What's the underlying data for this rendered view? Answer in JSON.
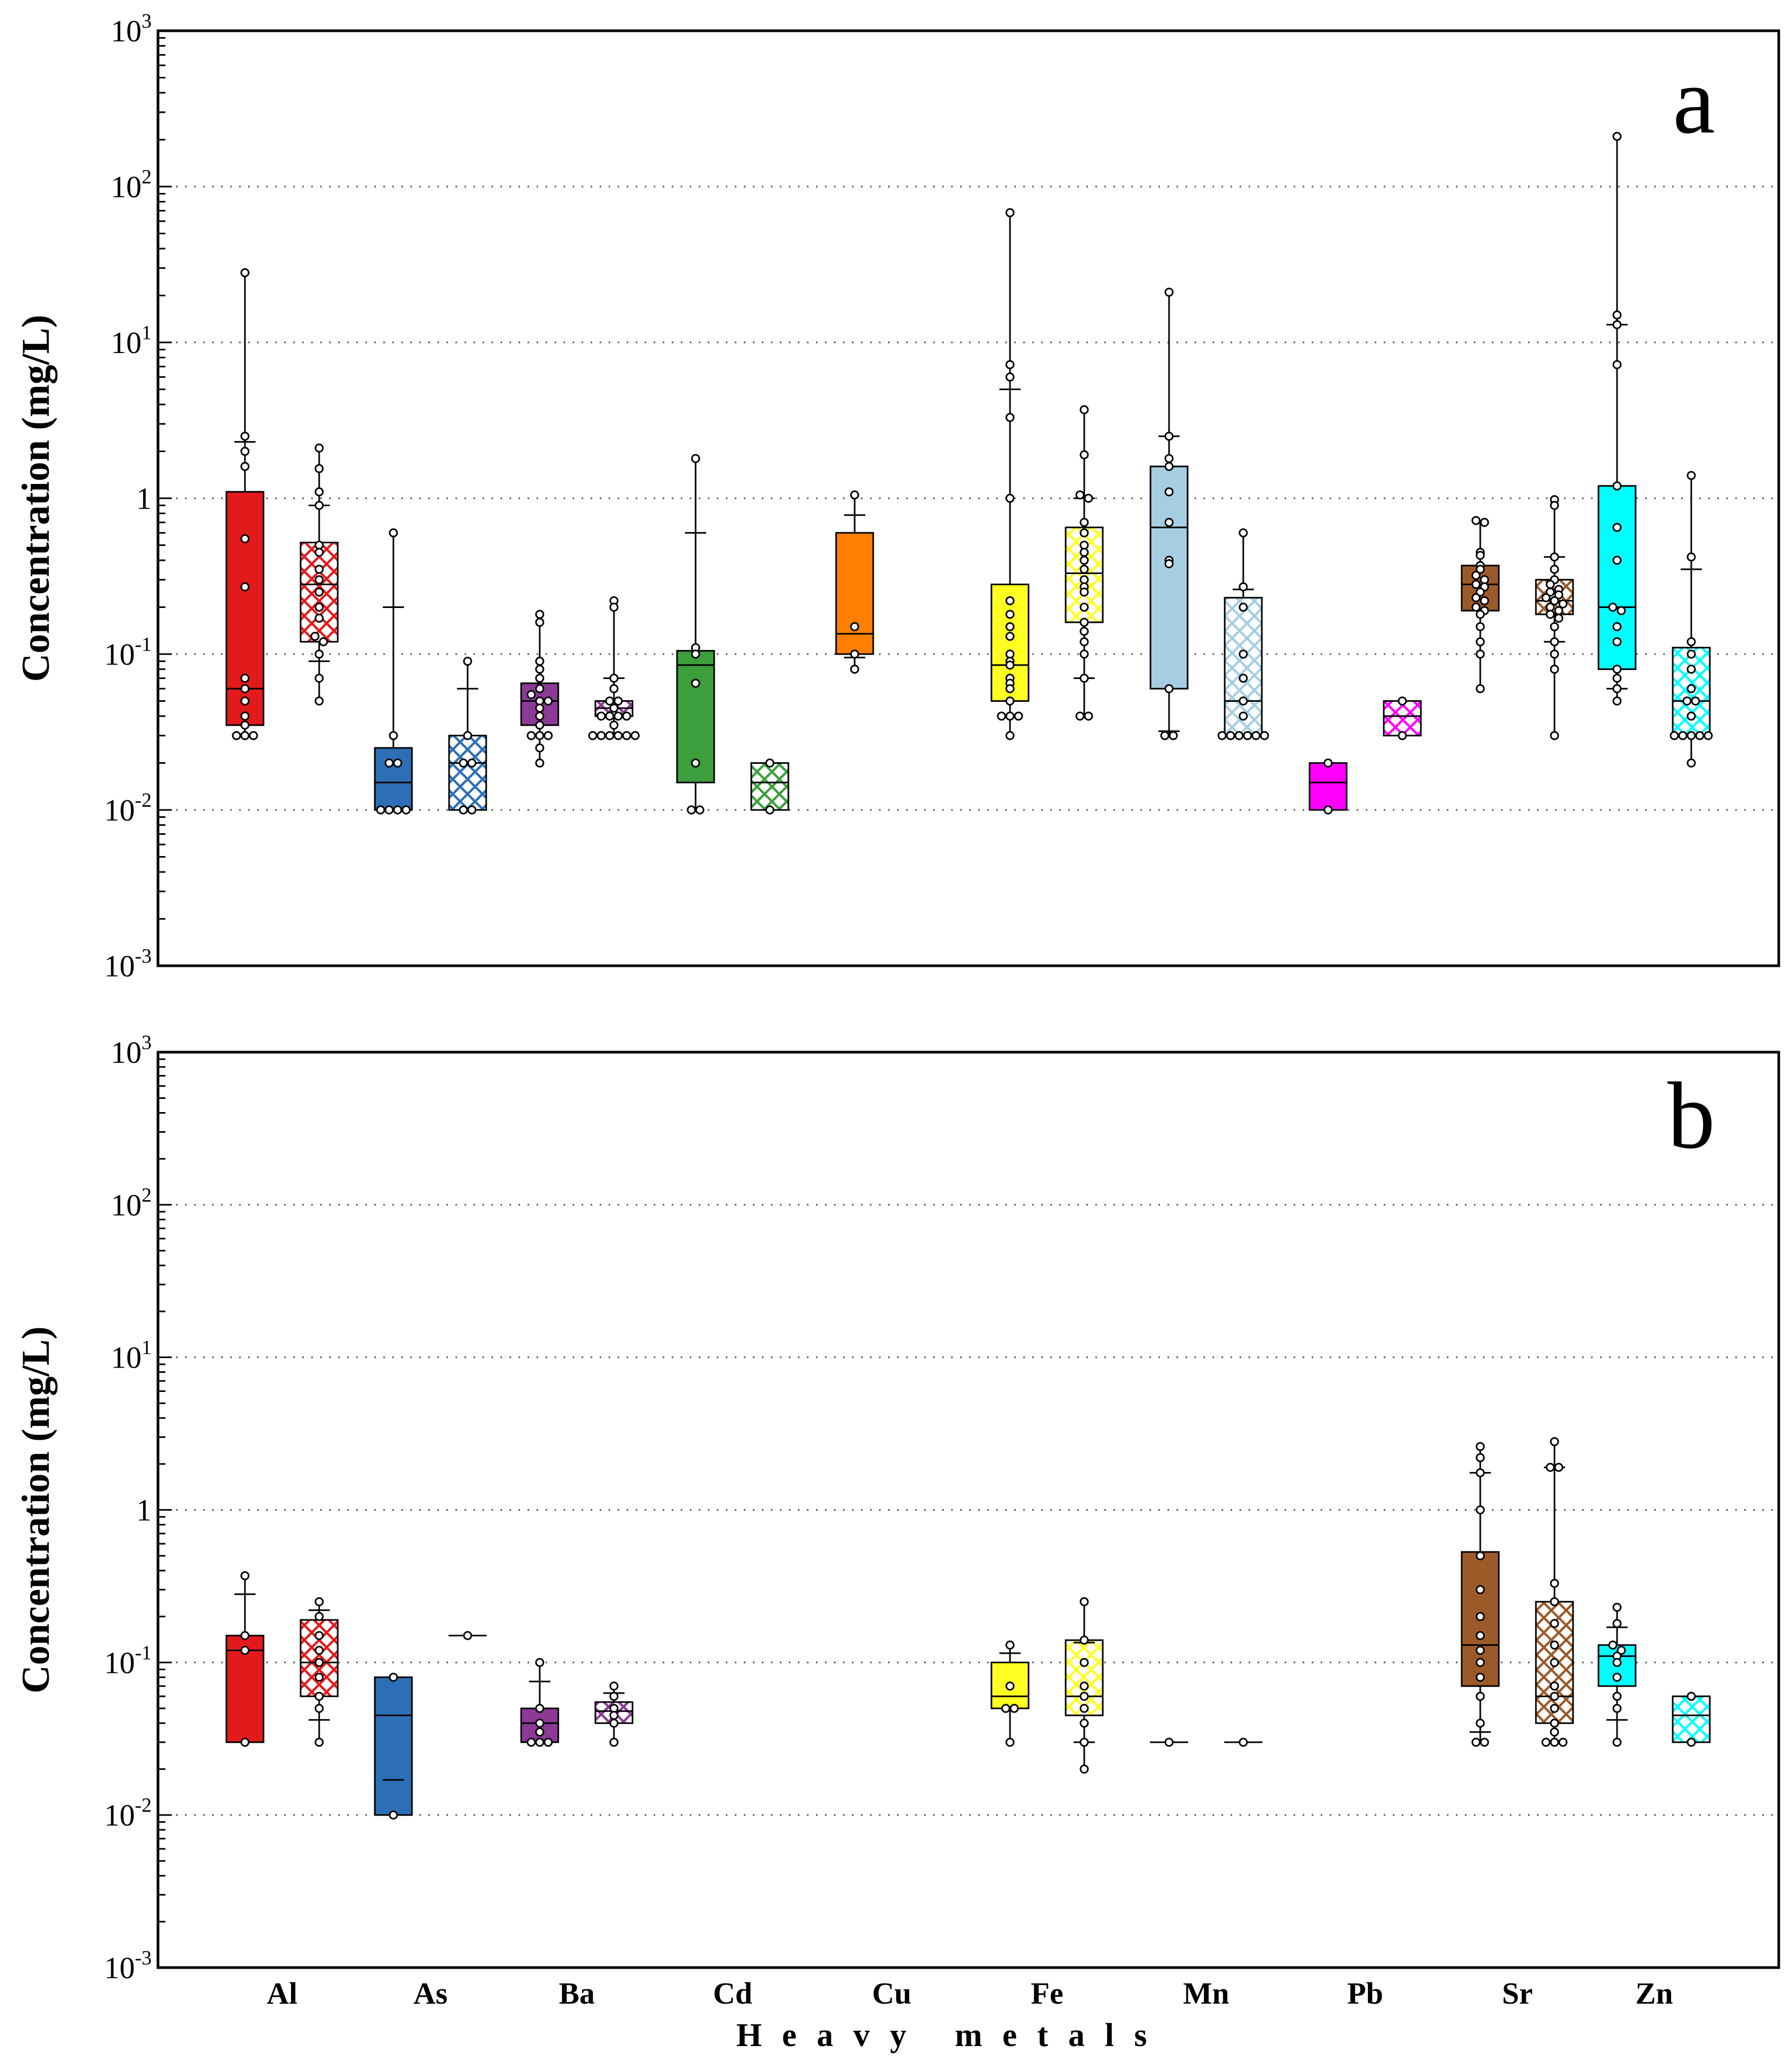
{
  "chart_data": {
    "type": "box",
    "yscale": "log",
    "ylim": [
      0.001,
      1000
    ],
    "yticks": [
      {
        "base": "10",
        "exp": "3"
      },
      {
        "base": "10",
        "exp": "2"
      },
      {
        "base": "10",
        "exp": "1"
      },
      {
        "base": "1",
        "exp": ""
      },
      {
        "base": "10",
        "exp": "-1"
      },
      {
        "base": "10",
        "exp": "-2"
      },
      {
        "base": "10",
        "exp": "-3"
      }
    ],
    "ylabel": "Concentration (mg/L)",
    "xlabel": "Heavy metals",
    "categories": [
      "Al",
      "As",
      "Ba",
      "Cd",
      "Cu",
      "Fe",
      "Mn",
      "Pb",
      "Sr",
      "Zn"
    ],
    "colors": {
      "Al": "#e31a1c",
      "As": "#2c6fb6",
      "Ba": "#8b3a96",
      "Cd": "#3c9e3c",
      "Cu": "#ff7f00",
      "Fe": "#ffff22",
      "Mn": "#a6cee3",
      "Pb": "#ff00ff",
      "Sr": "#9c5a29",
      "Zn": "#00ffff"
    },
    "panels": [
      {
        "label": "a",
        "boxes": [
          {
            "cat": "Al",
            "hatch": false,
            "q1": 0.035,
            "median": 0.06,
            "q3": 1.1,
            "wlo": 0.03,
            "whi": 28,
            "p10": null,
            "p90": 2.3,
            "points": [
              28,
              2.5,
              2.0,
              1.6,
              0.55,
              0.27,
              0.07,
              0.06,
              0.05,
              0.04,
              0.035,
              0.03,
              0.03,
              0.03
            ]
          },
          {
            "cat": "Al",
            "hatch": true,
            "q1": 0.12,
            "median": 0.28,
            "q3": 0.52,
            "wlo": 0.05,
            "whi": 2.1,
            "p10": 0.09,
            "p90": 0.9,
            "points": [
              2.1,
              1.55,
              1.1,
              0.9,
              0.5,
              0.45,
              0.35,
              0.3,
              0.25,
              0.2,
              0.17,
              0.13,
              0.12,
              0.1,
              0.07,
              0.05
            ]
          },
          {
            "cat": "As",
            "hatch": false,
            "q1": 0.01,
            "median": 0.015,
            "q3": 0.025,
            "wlo": 0.01,
            "whi": 0.6,
            "p10": null,
            "p90": 0.2,
            "points": [
              0.6,
              0.03,
              0.02,
              0.02,
              0.01,
              0.01,
              0.01,
              0.01
            ]
          },
          {
            "cat": "As",
            "hatch": true,
            "q1": 0.01,
            "median": 0.02,
            "q3": 0.03,
            "wlo": 0.01,
            "whi": 0.09,
            "p10": null,
            "p90": 0.06,
            "points": [
              0.09,
              0.03,
              0.02,
              0.02,
              0.01,
              0.01
            ]
          },
          {
            "cat": "Ba",
            "hatch": false,
            "q1": 0.035,
            "median": 0.05,
            "q3": 0.065,
            "wlo": 0.02,
            "whi": 0.18,
            "p10": null,
            "p90": null,
            "points": [
              0.18,
              0.16,
              0.09,
              0.08,
              0.07,
              0.06,
              0.055,
              0.05,
              0.05,
              0.045,
              0.04,
              0.035,
              0.03,
              0.03,
              0.03,
              0.025,
              0.02
            ]
          },
          {
            "cat": "Ba",
            "hatch": true,
            "q1": 0.04,
            "median": 0.045,
            "q3": 0.05,
            "wlo": 0.03,
            "whi": 0.22,
            "p10": null,
            "p90": 0.07,
            "points": [
              0.22,
              0.2,
              0.07,
              0.06,
              0.05,
              0.05,
              0.045,
              0.04,
              0.04,
              0.04,
              0.04,
              0.035,
              0.03,
              0.03,
              0.03,
              0.03,
              0.03,
              0.03
            ]
          },
          {
            "cat": "Cd",
            "hatch": false,
            "q1": 0.015,
            "median": 0.085,
            "q3": 0.105,
            "wlo": 0.01,
            "whi": 1.8,
            "p10": null,
            "p90": 0.6,
            "points": [
              1.8,
              0.11,
              0.1,
              0.065,
              0.02,
              0.01,
              0.01
            ]
          },
          {
            "cat": "Cd",
            "hatch": true,
            "q1": 0.01,
            "median": 0.015,
            "q3": 0.02,
            "wlo": 0.01,
            "whi": 0.02,
            "p10": null,
            "p90": null,
            "points": [
              0.02,
              0.01
            ]
          },
          {
            "cat": "Cu",
            "hatch": false,
            "q1": 0.1,
            "median": 0.135,
            "q3": 0.6,
            "wlo": 0.08,
            "whi": 1.05,
            "p10": 0.095,
            "p90": 0.78,
            "points": [
              1.05,
              0.15,
              0.1,
              0.08
            ]
          },
          {
            "cat": "Fe",
            "hatch": false,
            "q1": 0.05,
            "median": 0.085,
            "q3": 0.28,
            "wlo": 0.03,
            "whi": 68,
            "p10": null,
            "p90": 5,
            "points": [
              68,
              7.2,
              6.0,
              3.3,
              1.0,
              0.22,
              0.18,
              0.15,
              0.13,
              0.1,
              0.09,
              0.085,
              0.07,
              0.065,
              0.06,
              0.05,
              0.04,
              0.04,
              0.04,
              0.03
            ]
          },
          {
            "cat": "Fe",
            "hatch": true,
            "q1": 0.16,
            "median": 0.33,
            "q3": 0.65,
            "wlo": 0.04,
            "whi": 3.7,
            "p10": 0.07,
            "p90": 1.0,
            "points": [
              3.7,
              1.9,
              1.05,
              1.0,
              0.7,
              0.6,
              0.5,
              0.45,
              0.4,
              0.35,
              0.3,
              0.27,
              0.25,
              0.2,
              0.16,
              0.14,
              0.12,
              0.1,
              0.07,
              0.04,
              0.04
            ]
          },
          {
            "cat": "Mn",
            "hatch": false,
            "q1": 0.06,
            "median": 0.65,
            "q3": 1.6,
            "wlo": 0.03,
            "whi": 21,
            "p10": 0.032,
            "p90": 2.5,
            "points": [
              21,
              2.5,
              1.8,
              1.6,
              1.1,
              0.7,
              0.4,
              0.38,
              0.06,
              0.03,
              0.03
            ]
          },
          {
            "cat": "Mn",
            "hatch": true,
            "q1": 0.03,
            "median": 0.05,
            "q3": 0.23,
            "wlo": 0.03,
            "whi": 0.6,
            "p10": null,
            "p90": 0.26,
            "points": [
              0.6,
              0.27,
              0.2,
              0.1,
              0.07,
              0.05,
              0.04,
              0.03,
              0.03,
              0.03,
              0.03,
              0.03,
              0.03
            ]
          },
          {
            "cat": "Pb",
            "hatch": false,
            "q1": 0.01,
            "median": 0.015,
            "q3": 0.02,
            "wlo": 0.01,
            "whi": 0.02,
            "p10": null,
            "p90": null,
            "points": [
              0.02,
              0.01
            ]
          },
          {
            "cat": "Pb",
            "hatch": true,
            "q1": 0.03,
            "median": 0.04,
            "q3": 0.05,
            "wlo": 0.03,
            "whi": 0.05,
            "p10": null,
            "p90": null,
            "points": [
              0.05,
              0.03
            ]
          },
          {
            "cat": "Sr",
            "hatch": false,
            "q1": 0.19,
            "median": 0.28,
            "q3": 0.37,
            "wlo": 0.06,
            "whi": 0.72,
            "p10": null,
            "p90": null,
            "points": [
              0.72,
              0.7,
              0.45,
              0.43,
              0.37,
              0.35,
              0.32,
              0.3,
              0.28,
              0.27,
              0.25,
              0.23,
              0.22,
              0.2,
              0.19,
              0.18,
              0.15,
              0.12,
              0.1,
              0.06
            ]
          },
          {
            "cat": "Sr",
            "hatch": true,
            "q1": 0.18,
            "median": 0.22,
            "q3": 0.3,
            "wlo": 0.03,
            "whi": 0.98,
            "p10": 0.12,
            "p90": 0.42,
            "points": [
              0.98,
              0.9,
              0.42,
              0.35,
              0.3,
              0.28,
              0.26,
              0.25,
              0.24,
              0.23,
              0.22,
              0.21,
              0.2,
              0.19,
              0.18,
              0.17,
              0.15,
              0.12,
              0.1,
              0.08,
              0.03
            ]
          },
          {
            "cat": "Zn",
            "hatch": false,
            "q1": 0.08,
            "median": 0.2,
            "q3": 1.2,
            "wlo": 0.05,
            "whi": 210,
            "p10": 0.06,
            "p90": 13,
            "points": [
              210,
              15,
              13,
              7.2,
              1.2,
              0.65,
              0.4,
              0.2,
              0.19,
              0.15,
              0.12,
              0.08,
              0.07,
              0.06,
              0.05
            ]
          },
          {
            "cat": "Zn",
            "hatch": true,
            "q1": 0.03,
            "median": 0.05,
            "q3": 0.11,
            "wlo": 0.02,
            "whi": 1.4,
            "p10": null,
            "p90": 0.35,
            "points": [
              1.4,
              0.42,
              0.12,
              0.1,
              0.08,
              0.06,
              0.05,
              0.05,
              0.04,
              0.03,
              0.03,
              0.03,
              0.03,
              0.03,
              0.02
            ]
          }
        ]
      },
      {
        "label": "b",
        "boxes": [
          {
            "cat": "Al",
            "hatch": false,
            "q1": 0.03,
            "median": 0.12,
            "q3": 0.15,
            "wlo": 0.03,
            "whi": 0.37,
            "p10": null,
            "p90": 0.28,
            "points": [
              0.37,
              0.15,
              0.12,
              0.03
            ]
          },
          {
            "cat": "Al",
            "hatch": true,
            "q1": 0.06,
            "median": 0.1,
            "q3": 0.19,
            "wlo": 0.03,
            "whi": 0.25,
            "p10": 0.042,
            "p90": 0.22,
            "points": [
              0.25,
              0.2,
              0.15,
              0.12,
              0.1,
              0.08,
              0.06,
              0.05,
              0.03
            ]
          },
          {
            "cat": "As",
            "hatch": false,
            "q1": 0.01,
            "median": 0.045,
            "q3": 0.08,
            "wlo": 0.01,
            "whi": 0.08,
            "p10": 0.017,
            "p90": null,
            "points": [
              0.08,
              0.01
            ]
          },
          {
            "cat": "As",
            "hatch": true,
            "single": 0.15,
            "points": [
              0.15
            ]
          },
          {
            "cat": "Ba",
            "hatch": false,
            "q1": 0.03,
            "median": 0.04,
            "q3": 0.05,
            "wlo": 0.03,
            "whi": 0.1,
            "p10": null,
            "p90": 0.075,
            "points": [
              0.1,
              0.05,
              0.04,
              0.035,
              0.03,
              0.03,
              0.03
            ]
          },
          {
            "cat": "Ba",
            "hatch": true,
            "q1": 0.04,
            "median": 0.048,
            "q3": 0.055,
            "wlo": 0.03,
            "whi": 0.07,
            "p10": null,
            "p90": 0.063,
            "points": [
              0.07,
              0.06,
              0.05,
              0.045,
              0.04,
              0.03
            ]
          },
          {
            "cat": "Fe",
            "hatch": false,
            "q1": 0.05,
            "median": 0.06,
            "q3": 0.1,
            "wlo": 0.03,
            "whi": 0.13,
            "p10": null,
            "p90": 0.115,
            "points": [
              0.13,
              0.07,
              0.05,
              0.05,
              0.03
            ]
          },
          {
            "cat": "Fe",
            "hatch": true,
            "q1": 0.045,
            "median": 0.06,
            "q3": 0.14,
            "wlo": 0.02,
            "whi": 0.25,
            "p10": 0.03,
            "p90": 0.135,
            "points": [
              0.25,
              0.14,
              0.1,
              0.07,
              0.06,
              0.05,
              0.04,
              0.03,
              0.02
            ]
          },
          {
            "cat": "Mn",
            "hatch": false,
            "single": 0.03,
            "points": [
              0.03
            ]
          },
          {
            "cat": "Mn",
            "hatch": true,
            "single": 0.03,
            "points": [
              0.03
            ]
          },
          {
            "cat": "Sr",
            "hatch": false,
            "q1": 0.07,
            "median": 0.13,
            "q3": 0.53,
            "wlo": 0.03,
            "whi": 2.6,
            "p10": 0.035,
            "p90": 1.75,
            "points": [
              2.6,
              2.2,
              1.75,
              1.0,
              0.5,
              0.3,
              0.2,
              0.15,
              0.12,
              0.1,
              0.08,
              0.06,
              0.04,
              0.03,
              0.03
            ]
          },
          {
            "cat": "Sr",
            "hatch": true,
            "q1": 0.04,
            "median": 0.06,
            "q3": 0.25,
            "wlo": 0.03,
            "whi": 2.8,
            "p10": null,
            "p90": 1.9,
            "points": [
              2.8,
              1.9,
              1.9,
              0.33,
              0.25,
              0.18,
              0.13,
              0.1,
              0.07,
              0.06,
              0.05,
              0.04,
              0.035,
              0.03,
              0.03,
              0.03
            ]
          },
          {
            "cat": "Zn",
            "hatch": false,
            "q1": 0.07,
            "median": 0.11,
            "q3": 0.13,
            "wlo": 0.03,
            "whi": 0.23,
            "p10": 0.042,
            "p90": 0.17,
            "points": [
              0.23,
              0.18,
              0.13,
              0.12,
              0.11,
              0.1,
              0.08,
              0.06,
              0.05,
              0.03
            ]
          },
          {
            "cat": "Zn",
            "hatch": true,
            "q1": 0.03,
            "median": 0.045,
            "q3": 0.06,
            "wlo": 0.03,
            "whi": 0.06,
            "p10": null,
            "p90": null,
            "points": [
              0.06,
              0.03
            ]
          }
        ]
      }
    ]
  }
}
